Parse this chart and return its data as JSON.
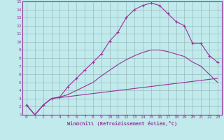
{
  "xlabel": "Windchill (Refroidissement éolien,°C)",
  "bg_color": "#c0eaec",
  "line_color": "#993399",
  "grid_color": "#9bbcbd",
  "xlim": [
    -0.5,
    23.5
  ],
  "ylim": [
    1,
    15
  ],
  "xticks": [
    0,
    1,
    2,
    3,
    4,
    5,
    6,
    7,
    8,
    9,
    10,
    11,
    12,
    13,
    14,
    15,
    16,
    17,
    18,
    19,
    20,
    21,
    22,
    23
  ],
  "yticks": [
    1,
    2,
    3,
    4,
    5,
    6,
    7,
    8,
    9,
    10,
    11,
    12,
    13,
    14,
    15
  ],
  "line1_x": [
    0,
    1,
    2,
    3,
    4,
    5,
    6,
    7,
    8,
    9,
    10,
    11,
    12,
    13,
    14,
    15,
    16,
    17,
    18,
    19,
    20,
    21,
    22,
    23
  ],
  "line1_y": [
    2.2,
    1.0,
    2.2,
    3.0,
    3.2,
    4.5,
    5.5,
    6.5,
    7.5,
    8.5,
    10.1,
    11.2,
    13.0,
    14.0,
    14.5,
    14.8,
    14.5,
    13.5,
    12.5,
    12.0,
    9.8,
    9.8,
    8.3,
    7.5
  ],
  "line2_x": [
    0,
    1,
    2,
    3,
    4,
    5,
    6,
    7,
    8,
    9,
    10,
    11,
    12,
    13,
    14,
    15,
    16,
    17,
    18,
    19,
    20,
    21,
    22,
    23
  ],
  "line2_y": [
    2.2,
    1.0,
    2.2,
    3.0,
    3.2,
    3.5,
    4.0,
    4.5,
    5.0,
    5.8,
    6.5,
    7.2,
    7.8,
    8.3,
    8.7,
    9.0,
    9.0,
    8.8,
    8.5,
    8.2,
    7.5,
    7.0,
    6.0,
    5.0
  ],
  "line3_x": [
    0,
    1,
    2,
    3,
    23
  ],
  "line3_y": [
    2.2,
    1.0,
    2.2,
    3.0,
    5.5
  ]
}
